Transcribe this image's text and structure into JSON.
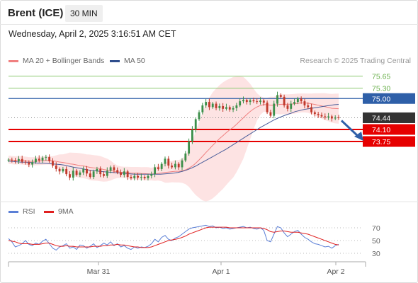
{
  "header": {
    "instrument": "Brent (ICE)",
    "timeframe": "30 MIN",
    "timestamp": "Wednesday, April 2, 2025 3:16:51 AM CET"
  },
  "legend": {
    "ma20_label": "MA 20 + Bollinger Bands",
    "ma50_label": "MA 50",
    "copyright": "Research © 2025 Trading Central"
  },
  "rsi_legend": {
    "rsi_label": "RSI",
    "ma_label": "9MA"
  },
  "colors": {
    "up_candle": "#3c8f4a",
    "down_candle": "#c0392b",
    "ma20": "#f08080",
    "bollinger_fill": "#fde0e0",
    "ma50": "#4a5d9a",
    "resistance": "#8cc870",
    "pivot": "#2e5fa8",
    "support": "#e60000",
    "last_price": "#333333",
    "rsi": "#5b7fd6",
    "rsi_ma": "#e02020",
    "arrow": "#2e5fa8"
  },
  "chart_data": [
    {
      "type": "candlestick",
      "x_labels": [
        "Mar 31",
        "Apr 1",
        "Apr 2"
      ],
      "price_levels": [
        {
          "label": "75.65",
          "value": 75.65,
          "kind": "resistance"
        },
        {
          "label": "75.30",
          "value": 75.3,
          "kind": "resistance"
        },
        {
          "label": "75.00",
          "value": 75.0,
          "kind": "pivot"
        },
        {
          "label": "74.44",
          "value": 74.44,
          "kind": "last"
        },
        {
          "label": "74.10",
          "value": 74.1,
          "kind": "support"
        },
        {
          "label": "73.75",
          "value": 73.75,
          "kind": "support"
        }
      ],
      "close": [
        73.22,
        73.2,
        73.18,
        73.24,
        73.16,
        73.14,
        73.08,
        73.15,
        73.25,
        73.2,
        73.28,
        73.3,
        73.18,
        73.05,
        72.95,
        72.88,
        72.95,
        72.8,
        72.7,
        72.9,
        72.78,
        72.85,
        72.95,
        72.82,
        72.72,
        72.88,
        72.95,
        72.8,
        72.75,
        72.9,
        73.0,
        72.92,
        72.85,
        72.78,
        72.88,
        72.72,
        72.68,
        72.75,
        72.7,
        72.72,
        72.68,
        72.75,
        72.8,
        73.0,
        72.95,
        73.1,
        73.25,
        73.05,
        73.0,
        73.1,
        73.0,
        73.2,
        73.4,
        73.75,
        74.1,
        74.4,
        74.6,
        74.8,
        74.9,
        74.75,
        74.85,
        74.72,
        74.78,
        74.7,
        74.75,
        74.68,
        74.72,
        74.8,
        74.92,
        74.96,
        74.9,
        74.95,
        74.92,
        74.9,
        74.94,
        74.88,
        74.6,
        74.5,
        74.85,
        75.1,
        75.05,
        74.8,
        74.7,
        74.85,
        74.9,
        75.0,
        74.92,
        74.8,
        74.75,
        74.6,
        74.55,
        74.52,
        74.48,
        74.45,
        74.48,
        74.42,
        74.45,
        74.44
      ],
      "ma50": [
        73.18,
        73.17,
        73.16,
        73.15,
        73.15,
        73.14,
        73.13,
        73.12,
        73.12,
        73.11,
        73.1,
        73.09,
        73.08,
        73.06,
        73.03,
        73.0,
        72.98,
        72.96,
        72.93,
        72.91,
        72.9,
        72.88,
        72.87,
        72.86,
        72.85,
        72.84,
        72.83,
        72.82,
        72.81,
        72.8,
        72.8,
        72.8,
        72.8,
        72.8,
        72.8,
        72.8,
        72.81,
        72.82,
        72.83,
        72.85,
        72.88,
        72.92,
        72.97,
        73.03,
        73.1,
        73.17,
        73.24,
        73.31,
        73.38,
        73.45,
        73.52,
        73.6,
        73.68,
        73.76,
        73.84,
        73.92,
        74.0,
        74.08,
        74.16,
        74.23,
        74.3,
        74.37,
        74.43,
        74.48,
        74.53,
        74.57,
        74.62,
        74.65,
        74.68,
        74.7,
        74.72,
        74.74,
        74.76,
        74.78,
        74.8,
        74.82,
        74.83
      ],
      "rsi_axis": [
        70,
        50,
        30
      ],
      "rsi": [
        53,
        48,
        40,
        42,
        45,
        50,
        44,
        42,
        46,
        44,
        49,
        52,
        45,
        38,
        35,
        40,
        42,
        45,
        38,
        40,
        36,
        43,
        42,
        38,
        41,
        45,
        39,
        42,
        46,
        43,
        48,
        42,
        45,
        40,
        42,
        38,
        36,
        40,
        38,
        40,
        39,
        41,
        45,
        52,
        48,
        55,
        58,
        52,
        50,
        54,
        56,
        60,
        64,
        68,
        70,
        71,
        72,
        73,
        74,
        72,
        73,
        70,
        71,
        69,
        70,
        68,
        69,
        70,
        71,
        72,
        70,
        71,
        69,
        68,
        70,
        66,
        50,
        48,
        60,
        72,
        70,
        62,
        56,
        60,
        64,
        66,
        60,
        55,
        52,
        48,
        45,
        44,
        42,
        40,
        41,
        38,
        42,
        44
      ],
      "rsi_ma": [
        50,
        49,
        48,
        46,
        45,
        45,
        45,
        44,
        44,
        44,
        45,
        46,
        46,
        44,
        42,
        41,
        41,
        42,
        41,
        41,
        40,
        40,
        40,
        40,
        40,
        41,
        41,
        41,
        42,
        42,
        43,
        43,
        44,
        43,
        43,
        42,
        41,
        40,
        40,
        39,
        39,
        39,
        40,
        42,
        44,
        46,
        48,
        50,
        51,
        52,
        53,
        55,
        57,
        60,
        62,
        64,
        66,
        68,
        70,
        71,
        71,
        71,
        71,
        71,
        71,
        70,
        70,
        70,
        70,
        70,
        70,
        70,
        70,
        70,
        70,
        69,
        67,
        64,
        63,
        64,
        65,
        65,
        64,
        63,
        63,
        63,
        62,
        61,
        60,
        58,
        56,
        54,
        52,
        50,
        48,
        46,
        44,
        43
      ]
    }
  ]
}
